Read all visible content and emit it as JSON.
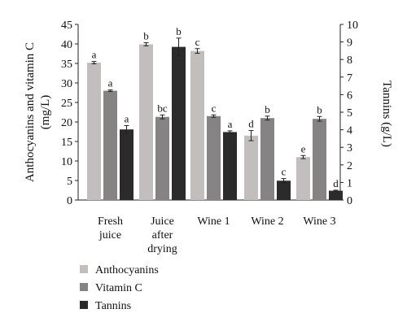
{
  "chart_data": {
    "type": "bar",
    "categories": [
      [
        "Fresh",
        "juice"
      ],
      [
        "Juice",
        "after",
        "drying"
      ],
      [
        "Wine 1"
      ],
      [
        "Wine 2"
      ],
      [
        "Wine 3"
      ]
    ],
    "series": [
      {
        "name": "Anthocyanins",
        "axis": "left",
        "color": "#c2bebe",
        "values": [
          35.2,
          39.9,
          38.2,
          16.5,
          11.0
        ],
        "errors": [
          0.3,
          0.4,
          0.6,
          1.3,
          0.4
        ],
        "labels": [
          "a",
          "b",
          "c",
          "d",
          "e"
        ]
      },
      {
        "name": "Vitamin C",
        "axis": "left",
        "color": "#858383",
        "values": [
          28.0,
          21.3,
          21.5,
          21.0,
          20.8
        ],
        "errors": [
          0.2,
          0.5,
          0.3,
          0.5,
          0.6
        ],
        "labels": [
          "a",
          "bc",
          "c",
          "b",
          "b"
        ]
      },
      {
        "name": "Tannins",
        "axis": "right",
        "color": "#2b2b2b",
        "values": [
          4.02,
          8.72,
          3.87,
          1.1,
          0.53
        ],
        "errors": [
          0.22,
          0.5,
          0.07,
          0.12,
          0.03
        ],
        "labels": [
          "a",
          "b",
          "a",
          "c",
          "d"
        ]
      }
    ],
    "ylabel_left": [
      "Anthocyanins and vitamin C",
      "(mg/L)"
    ],
    "ylabel_right": "Tannins (g/L)",
    "ylim_left": [
      0,
      45
    ],
    "yticks_left": [
      0,
      5,
      10,
      15,
      20,
      25,
      30,
      35,
      40,
      45
    ],
    "ylim_right": [
      0,
      10
    ],
    "yticks_right": [
      0,
      1,
      2,
      3,
      4,
      5,
      6,
      7,
      8,
      9,
      10
    ],
    "grid": false,
    "legend_placement": "bottom-left"
  }
}
